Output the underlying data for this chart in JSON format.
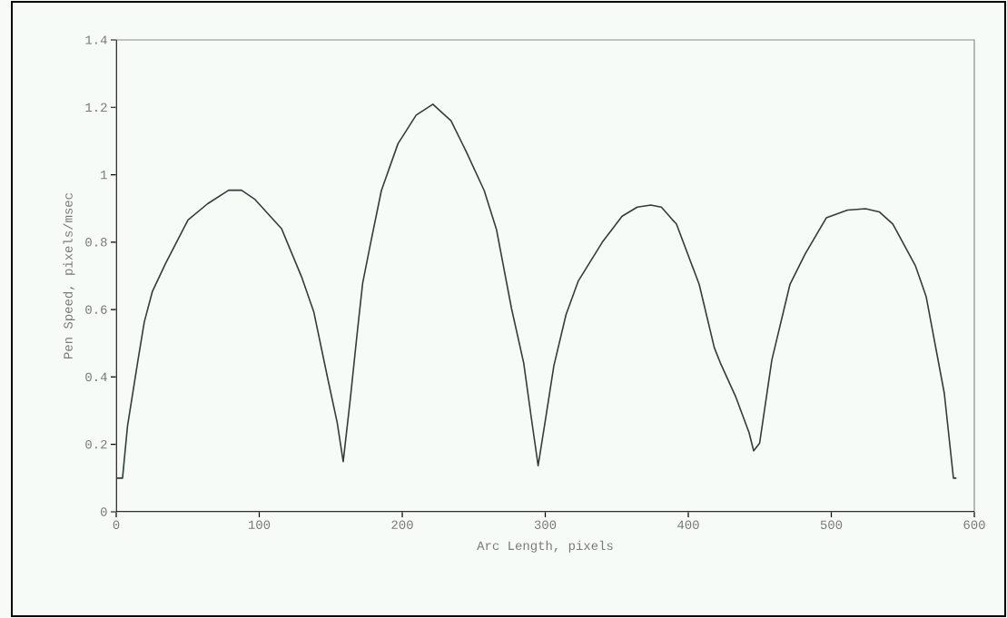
{
  "chart_data": {
    "type": "line",
    "xlabel": "Arc Length, pixels",
    "ylabel": "Pen Speed, pixels/msec",
    "x": [
      0,
      4.4,
      7.9,
      15.1,
      19.6,
      25.3,
      34.4,
      50.2,
      63.9,
      78.6,
      87.6,
      96.7,
      115.6,
      129.6,
      138.2,
      147.7,
      154.5,
      158.7,
      163.6,
      168.5,
      172.3,
      178,
      185.4,
      197,
      209.7,
      221.4,
      234.1,
      244.6,
      257.3,
      265.9,
      276.4,
      284.9,
      290.2,
      295,
      299.7,
      306,
      314.5,
      323,
      339.9,
      353.7,
      364.3,
      373.8,
      381.2,
      388.6,
      391.7,
      407.6,
      418.2,
      422.4,
      433,
      442.5,
      445.7,
      449.9,
      458.4,
      471.1,
      481.7,
      496.5,
      511.3,
      524,
      533.5,
      543,
      558.9,
      566.3,
      579,
      585.4,
      587.5
    ],
    "series": [
      {
        "color": "#333b3b",
        "values": [
          0.1,
          0.1,
          0.255,
          0.447,
          0.563,
          0.654,
          0.736,
          0.866,
          0.914,
          0.954,
          0.954,
          0.928,
          0.84,
          0.697,
          0.592,
          0.399,
          0.265,
          0.149,
          0.332,
          0.531,
          0.678,
          0.8,
          0.953,
          1.092,
          1.177,
          1.209,
          1.16,
          1.07,
          0.953,
          0.837,
          0.603,
          0.442,
          0.28,
          0.137,
          0.262,
          0.433,
          0.585,
          0.684,
          0.8,
          0.877,
          0.904,
          0.91,
          0.904,
          0.868,
          0.854,
          0.675,
          0.487,
          0.442,
          0.343,
          0.235,
          0.181,
          0.204,
          0.45,
          0.675,
          0.765,
          0.872,
          0.895,
          0.899,
          0.89,
          0.854,
          0.729,
          0.639,
          0.352,
          0.1,
          0.1
        ]
      }
    ],
    "xlim": [
      0,
      600
    ],
    "ylim": [
      0,
      1.4
    ],
    "xticks": [
      0,
      100,
      200,
      300,
      400,
      500,
      600
    ],
    "yticks": [
      0,
      0.2,
      0.4,
      0.6,
      0.8,
      1,
      1.2,
      1.4
    ],
    "grid": false,
    "marker": "none",
    "line_style": "solid"
  }
}
